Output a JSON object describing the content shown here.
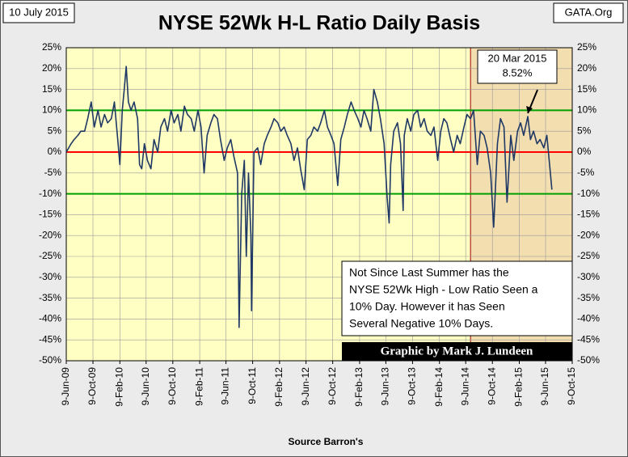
{
  "chart_data": {
    "type": "line",
    "title": "NYSE 52Wk H-L Ratio Daily Basis",
    "date_label": "10 July 2015",
    "site_label": "GATA.Org",
    "xlabel": "Source Barron's",
    "credit": "Graphic by Mark J. Lundeen",
    "note": {
      "lines": [
        "Not Since Last Summer  has the",
        "NYSE 52Wk High - Low Ratio Seen a",
        "10% Day.  However it has Seen",
        "Several  Negative 10% Days."
      ]
    },
    "annotations": [
      {
        "lines": [
          "20 Mar 2015",
          "8.52%"
        ],
        "x": "2015-03-20",
        "y": 8.52
      }
    ],
    "x": [
      "2009-06-09",
      "2009-06-20",
      "2009-07-01",
      "2009-07-15",
      "2009-08-01",
      "2009-08-15",
      "2009-09-01",
      "2009-09-15",
      "2009-10-01",
      "2009-10-15",
      "2009-11-01",
      "2009-11-15",
      "2009-12-01",
      "2009-12-15",
      "2010-01-01",
      "2010-01-15",
      "2010-02-01",
      "2010-02-09",
      "2010-02-20",
      "2010-03-01",
      "2010-03-10",
      "2010-03-20",
      "2010-04-01",
      "2010-04-15",
      "2010-05-01",
      "2010-05-10",
      "2010-05-20",
      "2010-06-01",
      "2010-06-15",
      "2010-07-01",
      "2010-07-15",
      "2010-08-01",
      "2010-08-15",
      "2010-09-01",
      "2010-09-15",
      "2010-10-01",
      "2010-10-15",
      "2010-11-01",
      "2010-11-15",
      "2010-12-01",
      "2010-12-15",
      "2011-01-01",
      "2011-01-15",
      "2011-02-01",
      "2011-02-15",
      "2011-03-01",
      "2011-03-15",
      "2011-04-01",
      "2011-04-15",
      "2011-05-01",
      "2011-05-15",
      "2011-06-01",
      "2011-06-15",
      "2011-07-01",
      "2011-07-15",
      "2011-08-01",
      "2011-08-08",
      "2011-08-20",
      "2011-09-01",
      "2011-09-10",
      "2011-09-20",
      "2011-10-01",
      "2011-10-04",
      "2011-10-15",
      "2011-11-01",
      "2011-11-15",
      "2011-12-01",
      "2011-12-15",
      "2012-01-01",
      "2012-01-15",
      "2012-02-01",
      "2012-02-15",
      "2012-03-01",
      "2012-03-15",
      "2012-04-01",
      "2012-04-15",
      "2012-05-01",
      "2012-05-15",
      "2012-06-01",
      "2012-06-15",
      "2012-07-01",
      "2012-07-15",
      "2012-08-01",
      "2012-08-15",
      "2012-09-01",
      "2012-09-15",
      "2012-10-01",
      "2012-10-15",
      "2012-11-01",
      "2012-11-15",
      "2012-12-01",
      "2012-12-15",
      "2013-01-01",
      "2013-01-15",
      "2013-02-01",
      "2013-02-15",
      "2013-03-01",
      "2013-03-15",
      "2013-04-01",
      "2013-04-15",
      "2013-05-01",
      "2013-05-15",
      "2013-06-01",
      "2013-06-15",
      "2013-06-24",
      "2013-07-01",
      "2013-07-15",
      "2013-08-01",
      "2013-08-15",
      "2013-08-27",
      "2013-09-01",
      "2013-09-15",
      "2013-10-01",
      "2013-10-15",
      "2013-11-01",
      "2013-11-15",
      "2013-12-01",
      "2013-12-15",
      "2014-01-01",
      "2014-01-15",
      "2014-02-01",
      "2014-02-15",
      "2014-03-01",
      "2014-03-15",
      "2014-04-01",
      "2014-04-15",
      "2014-05-01",
      "2014-05-15",
      "2014-06-01",
      "2014-06-15",
      "2014-07-01",
      "2014-07-15",
      "2014-08-01",
      "2014-08-15",
      "2014-09-01",
      "2014-09-15",
      "2014-10-01",
      "2014-10-15",
      "2014-11-01",
      "2014-11-15",
      "2014-12-01",
      "2014-12-15",
      "2015-01-01",
      "2015-01-15",
      "2015-02-01",
      "2015-02-15",
      "2015-03-01",
      "2015-03-20",
      "2015-04-01",
      "2015-04-15",
      "2015-05-01",
      "2015-05-15",
      "2015-06-01",
      "2015-06-15",
      "2015-07-01",
      "2015-07-08"
    ],
    "series": [
      {
        "color": "#1f3864",
        "values": [
          0,
          1,
          2,
          3,
          4,
          5,
          5,
          8,
          12,
          6,
          10,
          6,
          9,
          7,
          8,
          12,
          2,
          -3,
          10,
          15,
          20.5,
          12,
          10,
          12,
          8,
          -3,
          -4,
          2,
          -2,
          -4,
          3,
          0,
          6,
          8,
          5,
          10,
          7,
          9,
          5,
          11,
          9,
          8,
          5,
          10,
          6,
          -5,
          4,
          7,
          9,
          8,
          3,
          -2,
          1,
          3,
          -1,
          -5,
          -42,
          -10,
          -2,
          -25,
          -5,
          -20,
          -38,
          0,
          1,
          -3,
          2,
          4,
          6,
          8,
          7,
          5,
          6,
          4,
          2,
          -2,
          1,
          -4,
          -9,
          3,
          4,
          6,
          5,
          7,
          10,
          6,
          4,
          2,
          -8,
          3,
          6,
          9,
          12,
          10,
          8,
          6,
          10,
          8,
          5,
          15,
          12,
          8,
          2,
          -11,
          -17,
          -3,
          5,
          7,
          2,
          -14,
          4,
          8,
          5,
          9,
          10,
          6,
          8,
          5,
          4,
          6,
          -2,
          5,
          8,
          7,
          3,
          0,
          4,
          2,
          6,
          9,
          8,
          10,
          -3,
          5,
          4,
          1,
          -5,
          -18,
          2,
          8,
          6,
          -12,
          4,
          -2,
          5,
          7,
          4,
          8.52,
          3,
          5,
          2,
          3,
          1,
          4,
          -5,
          -9
        ]
      }
    ],
    "xlim": [
      "2009-06-09",
      "2015-10-09"
    ],
    "xticks": [
      {
        "value": "2009-06-09",
        "label": "9-Jun-09"
      },
      {
        "value": "2009-10-09",
        "label": "9-Oct-09"
      },
      {
        "value": "2010-02-09",
        "label": "9-Feb-10"
      },
      {
        "value": "2010-06-09",
        "label": "9-Jun-10"
      },
      {
        "value": "2010-10-09",
        "label": "9-Oct-10"
      },
      {
        "value": "2011-02-09",
        "label": "9-Feb-11"
      },
      {
        "value": "2011-06-09",
        "label": "9-Jun-11"
      },
      {
        "value": "2011-10-09",
        "label": "9-Oct-11"
      },
      {
        "value": "2012-02-09",
        "label": "9-Feb-12"
      },
      {
        "value": "2012-06-09",
        "label": "9-Jun-12"
      },
      {
        "value": "2012-10-09",
        "label": "9-Oct-12"
      },
      {
        "value": "2013-02-09",
        "label": "9-Feb-13"
      },
      {
        "value": "2013-06-09",
        "label": "9-Jun-13"
      },
      {
        "value": "2013-10-09",
        "label": "9-Oct-13"
      },
      {
        "value": "2014-02-09",
        "label": "9-Feb-14"
      },
      {
        "value": "2014-06-09",
        "label": "9-Jun-14"
      },
      {
        "value": "2014-10-09",
        "label": "9-Oct-14"
      },
      {
        "value": "2015-02-09",
        "label": "9-Feb-15"
      },
      {
        "value": "2015-06-09",
        "label": "9-Jun-15"
      },
      {
        "value": "2015-10-09",
        "label": "9-Oct-15"
      }
    ],
    "ylim": [
      -50,
      25
    ],
    "yticks": [
      {
        "value": -50,
        "label": "-50%"
      },
      {
        "value": -45,
        "label": "-45%"
      },
      {
        "value": -40,
        "label": "-40%"
      },
      {
        "value": -35,
        "label": "-35%"
      },
      {
        "value": -30,
        "label": "-30%"
      },
      {
        "value": -25,
        "label": "-25%"
      },
      {
        "value": -20,
        "label": "-20%"
      },
      {
        "value": -15,
        "label": "-15%"
      },
      {
        "value": -10,
        "label": "-10%"
      },
      {
        "value": -5,
        "label": "-5%"
      },
      {
        "value": 0,
        "label": "0%"
      },
      {
        "value": 5,
        "label": "5%"
      },
      {
        "value": 10,
        "label": "10%"
      },
      {
        "value": 15,
        "label": "15%"
      },
      {
        "value": 20,
        "label": "20%"
      },
      {
        "value": 25,
        "label": "25%"
      }
    ],
    "grid": true,
    "plot_color": "#ffffc4",
    "reference_lines": [
      {
        "value": 10,
        "color": "#00a000"
      },
      {
        "value": 0,
        "color": "#ff0000"
      },
      {
        "value": -10,
        "color": "#00a000"
      }
    ],
    "shaded_region": {
      "x": [
        "2014-07-01",
        "2015-10-09"
      ],
      "color": "#f3deb0",
      "edge_color": "#a00000"
    }
  }
}
